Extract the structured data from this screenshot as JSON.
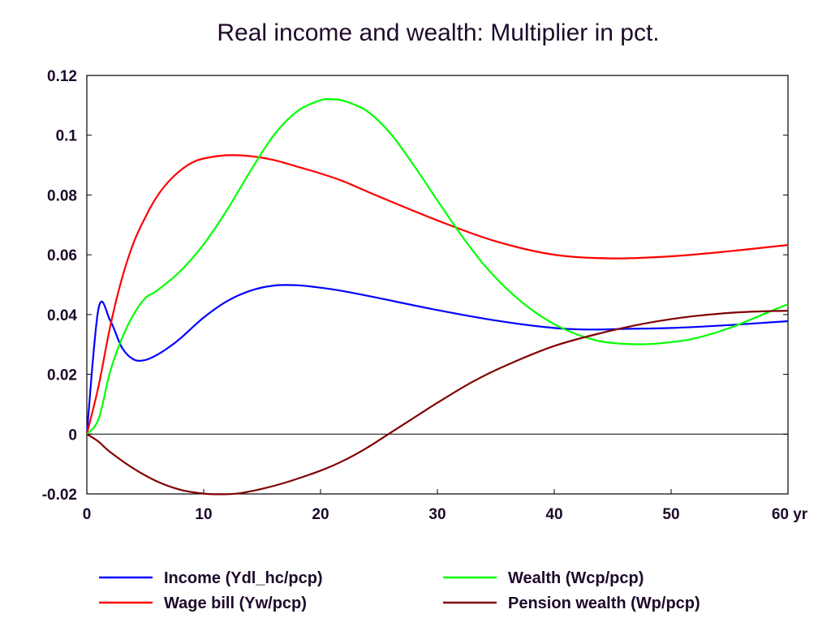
{
  "chart_data": {
    "type": "line",
    "title": "Real income and wealth: Multiplier in pct.",
    "xlabel": "",
    "ylabel": "",
    "x_tick_labels": [
      "0",
      "10",
      "20",
      "30",
      "40",
      "50",
      "60 yr"
    ],
    "x_ticks": [
      0,
      10,
      20,
      30,
      40,
      50,
      60
    ],
    "y_tick_labels": [
      "-0.02",
      "0",
      "0.02",
      "0.04",
      "0.06",
      "0.08",
      "0.1",
      "0.12"
    ],
    "y_ticks": [
      -0.02,
      0,
      0.02,
      0.04,
      0.06,
      0.08,
      0.1,
      0.12
    ],
    "xlim": [
      0,
      60
    ],
    "ylim": [
      -0.02,
      0.12
    ],
    "zero_line": true,
    "grid": false,
    "legend_position": "bottom",
    "series": [
      {
        "name": "Income (Ydl_hc/pcp)",
        "color": "#0000ff",
        "x": [
          0,
          1,
          2,
          3,
          4,
          5,
          6,
          7,
          8,
          10,
          12,
          14,
          16,
          18,
          20,
          22,
          25,
          30,
          35,
          40,
          43,
          46,
          50,
          55,
          60
        ],
        "y": [
          0,
          0.042,
          0.038,
          0.029,
          0.025,
          0.0248,
          0.0265,
          0.029,
          0.032,
          0.039,
          0.0445,
          0.048,
          0.0497,
          0.0498,
          0.049,
          0.0478,
          0.0455,
          0.0415,
          0.038,
          0.0355,
          0.035,
          0.0352,
          0.0355,
          0.0365,
          0.0378
        ]
      },
      {
        "name": "Wage bill (Yw/pcp)",
        "color": "#ff0000",
        "x": [
          0,
          1,
          2,
          3,
          4,
          5,
          6,
          7,
          8,
          9,
          10,
          12,
          14,
          16,
          18,
          20,
          22,
          25,
          30,
          35,
          40,
          45,
          50,
          55,
          60
        ],
        "y": [
          0,
          0.016,
          0.036,
          0.052,
          0.064,
          0.0725,
          0.0795,
          0.0845,
          0.0882,
          0.0908,
          0.0922,
          0.0933,
          0.093,
          0.0917,
          0.0895,
          0.0872,
          0.0845,
          0.0795,
          0.0715,
          0.0645,
          0.06,
          0.0588,
          0.0595,
          0.0612,
          0.0633
        ]
      },
      {
        "name": "Wealth (Wcp/pcp)",
        "color": "#00ff00",
        "x": [
          0,
          1,
          2,
          3,
          4,
          5,
          6,
          8,
          10,
          12,
          14,
          16,
          18,
          20,
          21,
          22,
          24,
          26,
          28,
          30,
          32,
          34,
          36,
          38,
          40,
          42,
          44,
          46,
          48,
          50,
          52,
          55,
          58,
          60
        ],
        "y": [
          0,
          0.005,
          0.021,
          0.032,
          0.04,
          0.0455,
          0.048,
          0.0545,
          0.0635,
          0.075,
          0.088,
          0.1,
          0.108,
          0.1117,
          0.112,
          0.1115,
          0.108,
          0.1005,
          0.0898,
          0.0782,
          0.0668,
          0.0566,
          0.0484,
          0.0418,
          0.0368,
          0.0333,
          0.031,
          0.0302,
          0.0301,
          0.0308,
          0.032,
          0.0355,
          0.0403,
          0.0435
        ]
      },
      {
        "name": "Pension wealth (Wp/pcp)",
        "color": "#800000",
        "x": [
          0,
          1,
          2,
          4,
          6,
          8,
          10,
          11.5,
          13,
          15,
          17,
          20,
          22,
          24,
          26,
          28,
          30,
          33,
          36,
          40,
          44,
          48,
          52,
          56,
          60
        ],
        "y": [
          0,
          -0.0025,
          -0.006,
          -0.0115,
          -0.0158,
          -0.0186,
          -0.0199,
          -0.0201,
          -0.0198,
          -0.0183,
          -0.0162,
          -0.0122,
          -0.0088,
          -0.0045,
          0.0005,
          0.0055,
          0.0105,
          0.0175,
          0.0232,
          0.0295,
          0.0338,
          0.0372,
          0.0395,
          0.0408,
          0.0413
        ]
      }
    ]
  }
}
